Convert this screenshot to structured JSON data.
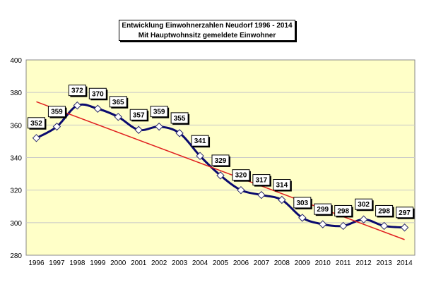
{
  "chart_data": {
    "type": "line",
    "title": "Entwicklung Einwohnerzahlen Neudorf 1996 - 2014",
    "subtitle": "Mit Hauptwohnsitz gemeldete Einwohner",
    "x": [
      "1996",
      "1997",
      "1998",
      "1999",
      "2000",
      "2001",
      "2002",
      "2003",
      "2004",
      "2005",
      "2006",
      "2007",
      "2008",
      "2009",
      "2010",
      "2011",
      "2012",
      "2013",
      "2014"
    ],
    "series": [
      {
        "values": [
          352,
          359,
          372,
          370,
          365,
          357,
          359,
          355,
          341,
          329,
          320,
          317,
          314,
          303,
          299,
          298,
          302,
          298,
          297
        ]
      }
    ],
    "trendline": {
      "type": "linear"
    },
    "ylim": [
      280,
      400
    ],
    "yticks": [
      280,
      300,
      320,
      340,
      360,
      380,
      400
    ],
    "grid": true,
    "colors": {
      "plot_bg": "#ffffc8",
      "line": "#0a0a6e",
      "trend": "#e02020",
      "marker_fill": "#ffffff",
      "grid": "#c8c8c8"
    }
  }
}
